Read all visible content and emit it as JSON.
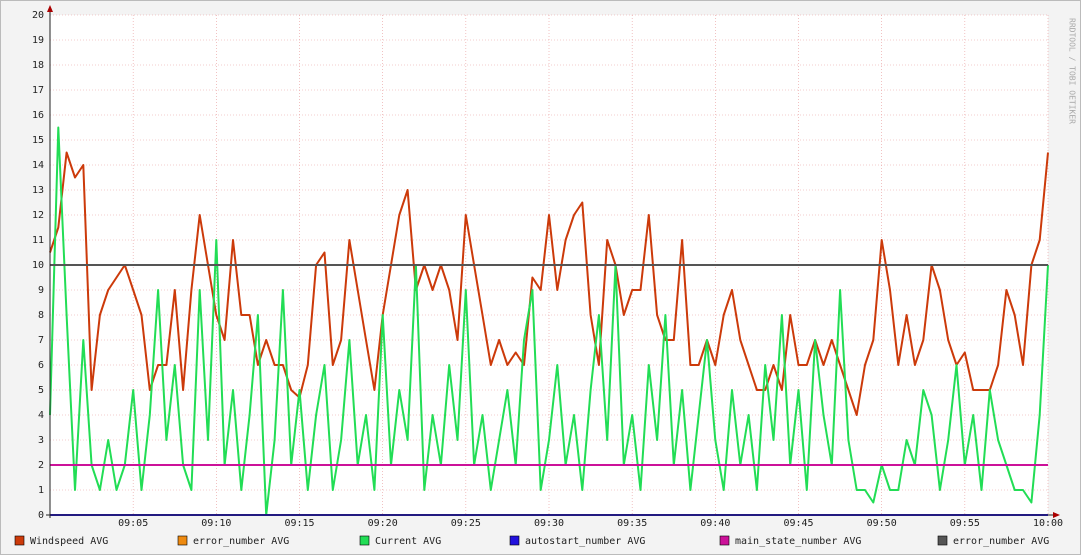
{
  "chart_data": {
    "type": "line",
    "credit": "RRDTOOL / TOBI OETIKER",
    "x": [
      0,
      0.5,
      1,
      1.5,
      2,
      2.5,
      3,
      3.5,
      4,
      4.5,
      5,
      5.5,
      6,
      6.5,
      7,
      7.5,
      8,
      8.5,
      9,
      9.5,
      10,
      10.5,
      11,
      11.5,
      12,
      12.5,
      13,
      13.5,
      14,
      14.5,
      15,
      15.5,
      16,
      16.5,
      17,
      17.5,
      18,
      18.5,
      19,
      19.5,
      20,
      20.5,
      21,
      21.5,
      22,
      22.5,
      23,
      23.5,
      24,
      24.5,
      25,
      25.5,
      26,
      26.5,
      27,
      27.5,
      28,
      28.5,
      29,
      29.5,
      30,
      30.5,
      31,
      31.5,
      32,
      32.5,
      33,
      33.5,
      34,
      34.5,
      35,
      35.5,
      36,
      36.5,
      37,
      37.5,
      38,
      38.5,
      39,
      39.5,
      40,
      40.5,
      41,
      41.5,
      42,
      42.5,
      43,
      43.5,
      44,
      44.5,
      45,
      45.5,
      46,
      46.5,
      47,
      47.5,
      48,
      48.5,
      49,
      49.5,
      50,
      50.5,
      51,
      51.5,
      52,
      52.5,
      53,
      53.5,
      54,
      54.5,
      55,
      55.5,
      56,
      56.5,
      57,
      57.5,
      58,
      58.5,
      59,
      59.5,
      60
    ],
    "xlim": [
      0,
      60
    ],
    "xticks": [
      {
        "value": 5,
        "label": "09:05"
      },
      {
        "value": 10,
        "label": "09:10"
      },
      {
        "value": 15,
        "label": "09:15"
      },
      {
        "value": 20,
        "label": "09:20"
      },
      {
        "value": 25,
        "label": "09:25"
      },
      {
        "value": 30,
        "label": "09:30"
      },
      {
        "value": 35,
        "label": "09:35"
      },
      {
        "value": 40,
        "label": "09:40"
      },
      {
        "value": 45,
        "label": "09:45"
      },
      {
        "value": 50,
        "label": "09:50"
      },
      {
        "value": 55,
        "label": "09:55"
      },
      {
        "value": 60,
        "label": "10:00"
      }
    ],
    "ylim": [
      0,
      20
    ],
    "yticks": [
      0,
      1,
      2,
      3,
      4,
      5,
      6,
      7,
      8,
      9,
      10,
      11,
      12,
      13,
      14,
      15,
      16,
      17,
      18,
      19,
      20
    ],
    "grid": true,
    "series": [
      {
        "name": "Windspeed AVG",
        "color": "#cc3a0a",
        "values": [
          10.5,
          11.5,
          14.5,
          13.5,
          14,
          5,
          8,
          9,
          9.5,
          10,
          9,
          8,
          5,
          6,
          6,
          9,
          5,
          9,
          12,
          10,
          8,
          7,
          11,
          8,
          8,
          6,
          7,
          6,
          6,
          5,
          4.7,
          6,
          10,
          10.5,
          6,
          7,
          11,
          9,
          7,
          5,
          8,
          10,
          12,
          13,
          9,
          10,
          9,
          10,
          9,
          7,
          12,
          10,
          8,
          6,
          7,
          6,
          6.5,
          6,
          9.5,
          9,
          12,
          9,
          11,
          12,
          12.5,
          8,
          6,
          11,
          10,
          8,
          9,
          9,
          12,
          8,
          7,
          7,
          11,
          6,
          6,
          7,
          6,
          8,
          9,
          7,
          6,
          5,
          5,
          6,
          5,
          8,
          6,
          6,
          7,
          6,
          7,
          6,
          5,
          4,
          6,
          7,
          11,
          9,
          6,
          8,
          6,
          7,
          10,
          9,
          7,
          6,
          6.5,
          5,
          5,
          5,
          6,
          9,
          8,
          6,
          10,
          11,
          14.5
        ]
      },
      {
        "name": "error_number AVG",
        "color": "#ee8a10",
        "values": [
          0,
          0,
          0,
          0,
          0,
          0,
          0,
          0,
          0,
          0,
          0,
          0,
          0,
          0,
          0,
          0,
          0,
          0,
          0,
          0,
          0,
          0,
          0,
          0,
          0,
          0,
          0,
          0,
          0,
          0,
          0,
          0,
          0,
          0,
          0,
          0,
          0,
          0,
          0,
          0,
          0,
          0,
          0,
          0,
          0,
          0,
          0,
          0,
          0,
          0,
          0,
          0,
          0,
          0,
          0,
          0,
          0,
          0,
          0,
          0,
          0,
          0,
          0,
          0,
          0,
          0,
          0,
          0,
          0,
          0,
          0,
          0,
          0,
          0,
          0,
          0,
          0,
          0,
          0,
          0,
          0,
          0,
          0,
          0,
          0,
          0,
          0,
          0,
          0,
          0,
          0,
          0,
          0,
          0,
          0,
          0,
          0,
          0,
          0,
          0,
          0,
          0,
          0,
          0,
          0,
          0,
          0,
          0,
          0,
          0,
          0,
          0,
          0,
          0,
          0,
          0,
          0,
          0,
          0,
          0,
          0
        ]
      },
      {
        "name": "Current AVG",
        "color": "#22dd55",
        "values": [
          4,
          15.5,
          8,
          1,
          7,
          2,
          1,
          3,
          1,
          2,
          5,
          1,
          4,
          9,
          3,
          6,
          2,
          1,
          9,
          3,
          11,
          2,
          5,
          1,
          4,
          8,
          0,
          3,
          9,
          2,
          5,
          1,
          4,
          6,
          1,
          3,
          7,
          2,
          4,
          1,
          8,
          2,
          5,
          3,
          10,
          1,
          4,
          2,
          6,
          3,
          9,
          2,
          4,
          1,
          3,
          5,
          2,
          7,
          9,
          1,
          3,
          6,
          2,
          4,
          1,
          5,
          8,
          3,
          10,
          2,
          4,
          1,
          6,
          3,
          8,
          2,
          5,
          1,
          4,
          7,
          3,
          1,
          5,
          2,
          4,
          1,
          6,
          3,
          8,
          2,
          5,
          1,
          7,
          4,
          2,
          9,
          3,
          1,
          1,
          0.5,
          2,
          1,
          1,
          3,
          2,
          5,
          4,
          1,
          3,
          6,
          2,
          4,
          1,
          5,
          3,
          2,
          1,
          1,
          0.5,
          4,
          10
        ]
      },
      {
        "name": "autostart_number AVG",
        "color": "#2211dd",
        "values": [
          0,
          0,
          0,
          0,
          0,
          0,
          0,
          0,
          0,
          0,
          0,
          0,
          0,
          0,
          0,
          0,
          0,
          0,
          0,
          0,
          0,
          0,
          0,
          0,
          0,
          0,
          0,
          0,
          0,
          0,
          0,
          0,
          0,
          0,
          0,
          0,
          0,
          0,
          0,
          0,
          0,
          0,
          0,
          0,
          0,
          0,
          0,
          0,
          0,
          0,
          0,
          0,
          0,
          0,
          0,
          0,
          0,
          0,
          0,
          0,
          0,
          0,
          0,
          0,
          0,
          0,
          0,
          0,
          0,
          0,
          0,
          0,
          0,
          0,
          0,
          0,
          0,
          0,
          0,
          0,
          0,
          0,
          0,
          0,
          0,
          0,
          0,
          0,
          0,
          0,
          0,
          0,
          0,
          0,
          0,
          0,
          0,
          0,
          0,
          0,
          0,
          0,
          0,
          0,
          0,
          0,
          0,
          0,
          0,
          0,
          0,
          0,
          0,
          0,
          0,
          0,
          0,
          0,
          0,
          0,
          0
        ]
      },
      {
        "name": "main_state_number AVG",
        "color": "#cc1199",
        "values": [
          2,
          2,
          2,
          2,
          2,
          2,
          2,
          2,
          2,
          2,
          2,
          2,
          2,
          2,
          2,
          2,
          2,
          2,
          2,
          2,
          2,
          2,
          2,
          2,
          2,
          2,
          2,
          2,
          2,
          2,
          2,
          2,
          2,
          2,
          2,
          2,
          2,
          2,
          2,
          2,
          2,
          2,
          2,
          2,
          2,
          2,
          2,
          2,
          2,
          2,
          2,
          2,
          2,
          2,
          2,
          2,
          2,
          2,
          2,
          2,
          2,
          2,
          2,
          2,
          2,
          2,
          2,
          2,
          2,
          2,
          2,
          2,
          2,
          2,
          2,
          2,
          2,
          2,
          2,
          2,
          2,
          2,
          2,
          2,
          2,
          2,
          2,
          2,
          2,
          2,
          2,
          2,
          2,
          2,
          2,
          2,
          2,
          2,
          2,
          2,
          2,
          2,
          2,
          2,
          2,
          2,
          2,
          2,
          2,
          2,
          2,
          2,
          2,
          2,
          2,
          2,
          2,
          2,
          2,
          2,
          2
        ]
      },
      {
        "name": "error_number AVG",
        "color": "#555555",
        "values": [
          10,
          10,
          10,
          10,
          10,
          10,
          10,
          10,
          10,
          10,
          10,
          10,
          10,
          10,
          10,
          10,
          10,
          10,
          10,
          10,
          10,
          10,
          10,
          10,
          10,
          10,
          10,
          10,
          10,
          10,
          10,
          10,
          10,
          10,
          10,
          10,
          10,
          10,
          10,
          10,
          10,
          10,
          10,
          10,
          10,
          10,
          10,
          10,
          10,
          10,
          10,
          10,
          10,
          10,
          10,
          10,
          10,
          10,
          10,
          10,
          10,
          10,
          10,
          10,
          10,
          10,
          10,
          10,
          10,
          10,
          10,
          10,
          10,
          10,
          10,
          10,
          10,
          10,
          10,
          10,
          10,
          10,
          10,
          10,
          10,
          10,
          10,
          10,
          10,
          10,
          10,
          10,
          10,
          10,
          10,
          10,
          10,
          10,
          10,
          10,
          10,
          10,
          10,
          10,
          10,
          10,
          10,
          10,
          10,
          10,
          10,
          10,
          10,
          10,
          10,
          10,
          10,
          10,
          10,
          10,
          10
        ]
      }
    ]
  }
}
